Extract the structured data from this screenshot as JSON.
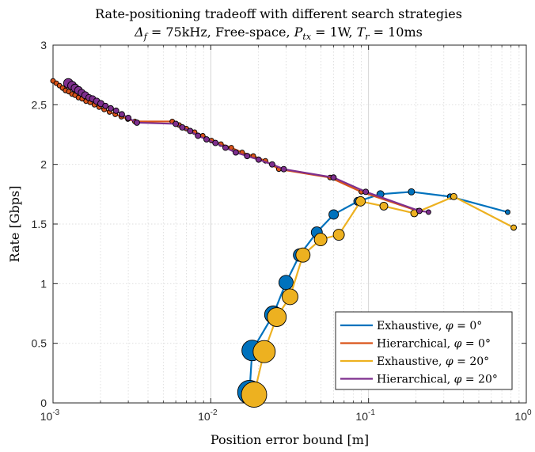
{
  "chart_data": {
    "type": "line",
    "title": "Rate-positioning tradeoff with different search strategies",
    "subtitle": "Δf = 75kHz, Free-space, Ptx = 1W, Tr = 10ms",
    "xlabel": "Position error bound [m]",
    "ylabel": "Rate [Gbps]",
    "xscale": "log",
    "xlim": [
      0.001,
      1
    ],
    "ylim": [
      0,
      3
    ],
    "x_ticks": [
      "10^-3",
      "10^-2",
      "10^-1",
      "10^0"
    ],
    "y_ticks": [
      "0",
      "0.5",
      "1",
      "1.5",
      "2",
      "2.5",
      "3"
    ],
    "grid": true,
    "legend_position": "lower-right",
    "series": [
      {
        "name": "Exhaustive, φ = 0°",
        "color": "#0072BD",
        "points": [
          [
            0.0176,
            0.09,
            15
          ],
          [
            0.0183,
            0.44,
            13
          ],
          [
            0.0249,
            0.74,
            11
          ],
          [
            0.03,
            1.01,
            9
          ],
          [
            0.0366,
            1.24,
            8
          ],
          [
            0.047,
            1.43,
            7
          ],
          [
            0.0601,
            1.58,
            6
          ],
          [
            0.0855,
            1.69,
            5
          ],
          [
            0.1189,
            1.75,
            4.5
          ],
          [
            0.187,
            1.77,
            4
          ],
          [
            0.329,
            1.73,
            3.5
          ],
          [
            0.762,
            1.6,
            3
          ]
        ]
      },
      {
        "name": "Hierarchical, φ = 0°",
        "color": "#D95319",
        "points": [
          [
            0.001,
            2.7,
            3
          ],
          [
            0.00105,
            2.68,
            3
          ],
          [
            0.0011,
            2.66,
            3
          ],
          [
            0.00115,
            2.64,
            3
          ],
          [
            0.0012,
            2.62,
            3
          ],
          [
            0.00126,
            2.61,
            3
          ],
          [
            0.00132,
            2.59,
            3
          ],
          [
            0.00138,
            2.58,
            3
          ],
          [
            0.00145,
            2.56,
            3
          ],
          [
            0.00153,
            2.55,
            3
          ],
          [
            0.00162,
            2.53,
            3
          ],
          [
            0.00172,
            2.52,
            3
          ],
          [
            0.00183,
            2.5,
            3
          ],
          [
            0.00196,
            2.48,
            3
          ],
          [
            0.00211,
            2.46,
            3
          ],
          [
            0.00228,
            2.44,
            3
          ],
          [
            0.00248,
            2.42,
            3
          ],
          [
            0.00271,
            2.4,
            3
          ],
          [
            0.00298,
            2.38,
            3
          ],
          [
            0.0033,
            2.36,
            3
          ],
          [
            0.0057,
            2.36,
            3
          ],
          [
            0.0063,
            2.33,
            3
          ],
          [
            0.007,
            2.3,
            3
          ],
          [
            0.0079,
            2.27,
            3
          ],
          [
            0.0089,
            2.24,
            3
          ],
          [
            0.0101,
            2.2,
            3
          ],
          [
            0.0116,
            2.17,
            3
          ],
          [
            0.0135,
            2.14,
            3
          ],
          [
            0.0158,
            2.1,
            3
          ],
          [
            0.0186,
            2.07,
            3
          ],
          [
            0.0222,
            2.03,
            3
          ],
          [
            0.027,
            1.96,
            3
          ],
          [
            0.057,
            1.89,
            3
          ],
          [
            0.09,
            1.77,
            3
          ],
          [
            0.205,
            1.61,
            3
          ]
        ]
      },
      {
        "name": "Exhaustive, φ = 20°",
        "color": "#EDB120",
        "points": [
          [
            0.0188,
            0.07,
            16
          ],
          [
            0.0218,
            0.43,
            14
          ],
          [
            0.0262,
            0.72,
            12
          ],
          [
            0.0318,
            0.89,
            10
          ],
          [
            0.0384,
            1.24,
            9
          ],
          [
            0.0497,
            1.37,
            8
          ],
          [
            0.0648,
            1.41,
            7
          ],
          [
            0.089,
            1.69,
            6
          ],
          [
            0.125,
            1.65,
            5
          ],
          [
            0.195,
            1.59,
            4.5
          ],
          [
            0.347,
            1.73,
            4
          ],
          [
            0.832,
            1.47,
            3.5
          ]
        ]
      },
      {
        "name": "Hierarchical, φ = 20°",
        "color": "#7E2F8E",
        "points": [
          [
            0.00125,
            2.68,
            6
          ],
          [
            0.00132,
            2.66,
            5.5
          ],
          [
            0.00138,
            2.64,
            5
          ],
          [
            0.00145,
            2.62,
            5
          ],
          [
            0.00152,
            2.6,
            4.5
          ],
          [
            0.0016,
            2.58,
            4.5
          ],
          [
            0.00169,
            2.56,
            4
          ],
          [
            0.00178,
            2.55,
            4
          ],
          [
            0.00189,
            2.53,
            4
          ],
          [
            0.00201,
            2.51,
            4
          ],
          [
            0.00215,
            2.49,
            3.5
          ],
          [
            0.00232,
            2.47,
            3.5
          ],
          [
            0.00251,
            2.45,
            3.5
          ],
          [
            0.00273,
            2.42,
            3.5
          ],
          [
            0.003,
            2.39,
            3.5
          ],
          [
            0.0034,
            2.35,
            3.5
          ],
          [
            0.006,
            2.34,
            3.5
          ],
          [
            0.0066,
            2.31,
            3.5
          ],
          [
            0.0074,
            2.28,
            3.5
          ],
          [
            0.0083,
            2.24,
            3.5
          ],
          [
            0.0094,
            2.21,
            3.5
          ],
          [
            0.0107,
            2.18,
            3.5
          ],
          [
            0.0124,
            2.14,
            3.5
          ],
          [
            0.0144,
            2.1,
            3.5
          ],
          [
            0.017,
            2.07,
            3.5
          ],
          [
            0.0201,
            2.04,
            3.5
          ],
          [
            0.0245,
            2.0,
            3.5
          ],
          [
            0.029,
            1.96,
            3.5
          ],
          [
            0.06,
            1.89,
            3.5
          ],
          [
            0.096,
            1.77,
            3.5
          ],
          [
            0.21,
            1.61,
            3.5
          ],
          [
            0.24,
            1.6,
            3
          ]
        ]
      }
    ]
  }
}
